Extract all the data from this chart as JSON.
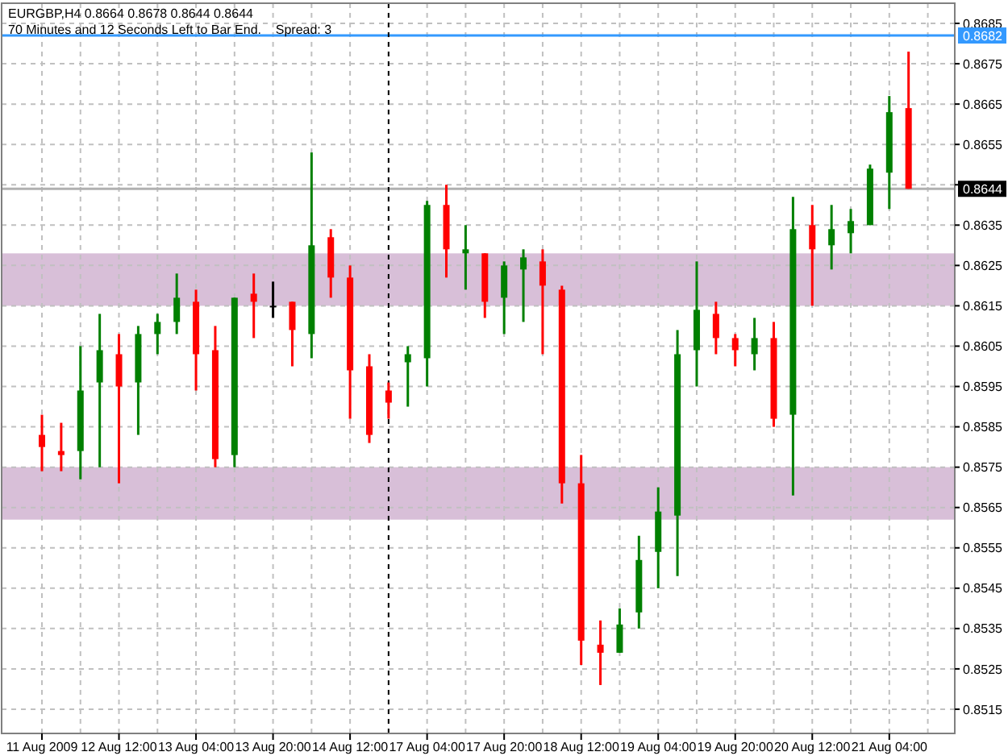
{
  "chart_data": {
    "type": "candlestick",
    "title": "EURGBP,H4  0.8664 0.8678 0.8644 0.8644",
    "subtitle": "70 Minutes and 12 Seconds Left to Bar End.    Spread: 3",
    "categories": [
      "11 Aug 2009",
      null,
      null,
      null,
      "12 Aug 12:00",
      null,
      null,
      null,
      "13 Aug 04:00",
      null,
      null,
      null,
      "13 Aug 20:00",
      null,
      null,
      null,
      "14 Aug 12:00",
      null,
      null,
      null,
      "17 Aug 04:00",
      null,
      null,
      null,
      "17 Aug 20:00",
      null,
      null,
      null,
      "18 Aug 12:00",
      null,
      null,
      null,
      "19 Aug 04:00",
      null,
      null,
      null,
      "19 Aug 20:00",
      null,
      null,
      null,
      "20 Aug 12:00",
      null,
      null,
      null,
      "21 Aug 04:00",
      null
    ],
    "ohlc": [
      [
        0.8583,
        0.8588,
        0.8574,
        0.858
      ],
      [
        0.8579,
        0.8586,
        0.8574,
        0.8578
      ],
      [
        0.8579,
        0.8605,
        0.8572,
        0.8594
      ],
      [
        0.8596,
        0.8613,
        0.8575,
        0.8604
      ],
      [
        0.8603,
        0.8608,
        0.8571,
        0.8595
      ],
      [
        0.8596,
        0.861,
        0.8583,
        0.8608
      ],
      [
        0.8608,
        0.8613,
        0.8603,
        0.8611
      ],
      [
        0.8611,
        0.8623,
        0.8608,
        0.8617
      ],
      [
        0.8616,
        0.8619,
        0.8594,
        0.8603
      ],
      [
        0.8604,
        0.861,
        0.8575,
        0.8577
      ],
      [
        0.8578,
        0.8617,
        0.8575,
        0.8617
      ],
      [
        0.8618,
        0.8623,
        0.8607,
        0.8616
      ],
      [
        0.8615,
        0.8621,
        0.8612,
        0.8615
      ],
      [
        0.8616,
        0.8616,
        0.86,
        0.8609
      ],
      [
        0.8608,
        0.8653,
        0.8602,
        0.863
      ],
      [
        0.8632,
        0.8634,
        0.8617,
        0.8622
      ],
      [
        0.8622,
        0.8625,
        0.8587,
        0.8599
      ],
      [
        0.86,
        0.8603,
        0.8581,
        0.8583
      ],
      [
        0.8594,
        0.8596,
        0.8587,
        0.8591
      ],
      [
        0.8601,
        0.8605,
        0.859,
        0.8603
      ],
      [
        0.8602,
        0.8641,
        0.8595,
        0.864
      ],
      [
        0.864,
        0.8645,
        0.8622,
        0.8629
      ],
      [
        0.8628,
        0.8635,
        0.8619,
        0.8629
      ],
      [
        0.8628,
        0.8628,
        0.8612,
        0.8616
      ],
      [
        0.8617,
        0.8626,
        0.8608,
        0.8625
      ],
      [
        0.8624,
        0.8629,
        0.8611,
        0.8627
      ],
      [
        0.8626,
        0.8629,
        0.8603,
        0.862
      ],
      [
        0.8619,
        0.862,
        0.8566,
        0.8571
      ],
      [
        0.8571,
        0.8578,
        0.8526,
        0.8532
      ],
      [
        0.8531,
        0.8537,
        0.8521,
        0.8529
      ],
      [
        0.8529,
        0.854,
        0.8529,
        0.8536
      ],
      [
        0.8539,
        0.8558,
        0.8535,
        0.8552
      ],
      [
        0.8554,
        0.857,
        0.8545,
        0.8564
      ],
      [
        0.8563,
        0.8609,
        0.8548,
        0.8603
      ],
      [
        0.8604,
        0.8626,
        0.8595,
        0.8614
      ],
      [
        0.8613,
        0.8616,
        0.8603,
        0.8607
      ],
      [
        0.8607,
        0.8608,
        0.86,
        0.8604
      ],
      [
        0.8603,
        0.8612,
        0.8599,
        0.8607
      ],
      [
        0.8607,
        0.8611,
        0.8585,
        0.8587
      ],
      [
        0.8588,
        0.8642,
        0.8568,
        0.8634
      ],
      [
        0.8635,
        0.864,
        0.8615,
        0.8629
      ],
      [
        0.863,
        0.864,
        0.8624,
        0.8634
      ],
      [
        0.8633,
        0.8639,
        0.8628,
        0.8636
      ],
      [
        0.8635,
        0.865,
        0.8635,
        0.8649
      ],
      [
        0.8648,
        0.8667,
        0.8639,
        0.8663
      ],
      [
        0.8664,
        0.8678,
        0.8644,
        0.8644
      ]
    ],
    "colors": [
      "#ff0000",
      "#ff0000",
      "#008000",
      "#008000",
      "#ff0000",
      "#008000",
      "#008000",
      "#008000",
      "#ff0000",
      "#ff0000",
      "#008000",
      "#ff0000",
      "#000000",
      "#ff0000",
      "#008000",
      "#ff0000",
      "#ff0000",
      "#ff0000",
      "#ff0000",
      "#008000",
      "#008000",
      "#ff0000",
      "#008000",
      "#ff0000",
      "#008000",
      "#008000",
      "#ff0000",
      "#ff0000",
      "#ff0000",
      "#ff0000",
      "#008000",
      "#008000",
      "#008000",
      "#008000",
      "#008000",
      "#ff0000",
      "#ff0000",
      "#008000",
      "#ff0000",
      "#008000",
      "#ff0000",
      "#008000",
      "#008000",
      "#008000",
      "#008000",
      "#ff0000"
    ],
    "ylim": [
      0.8509,
      0.869
    ],
    "yticks": [
      0.8515,
      0.8525,
      0.8535,
      0.8545,
      0.8555,
      0.8565,
      0.8575,
      0.8585,
      0.8595,
      0.8605,
      0.8615,
      0.8625,
      0.8635,
      {
        "value": 0.8645,
        "label": null
      },
      0.8655,
      0.8665,
      0.8675,
      0.8685
    ],
    "grid": true,
    "bands": [
      {
        "axis": "y",
        "from": 0.8615,
        "to": 0.8628,
        "color": "#d8bfd8"
      },
      {
        "axis": "y",
        "from": 0.8562,
        "to": 0.8575,
        "color": "#d8bfd8"
      }
    ],
    "ref_lines": [
      {
        "axis": "y",
        "value": 0.8682,
        "label": "0.8682",
        "color": "#3399ff"
      },
      {
        "axis": "y",
        "value": 0.8644,
        "label": "0.8644",
        "color": "#b0b0b0"
      }
    ]
  }
}
